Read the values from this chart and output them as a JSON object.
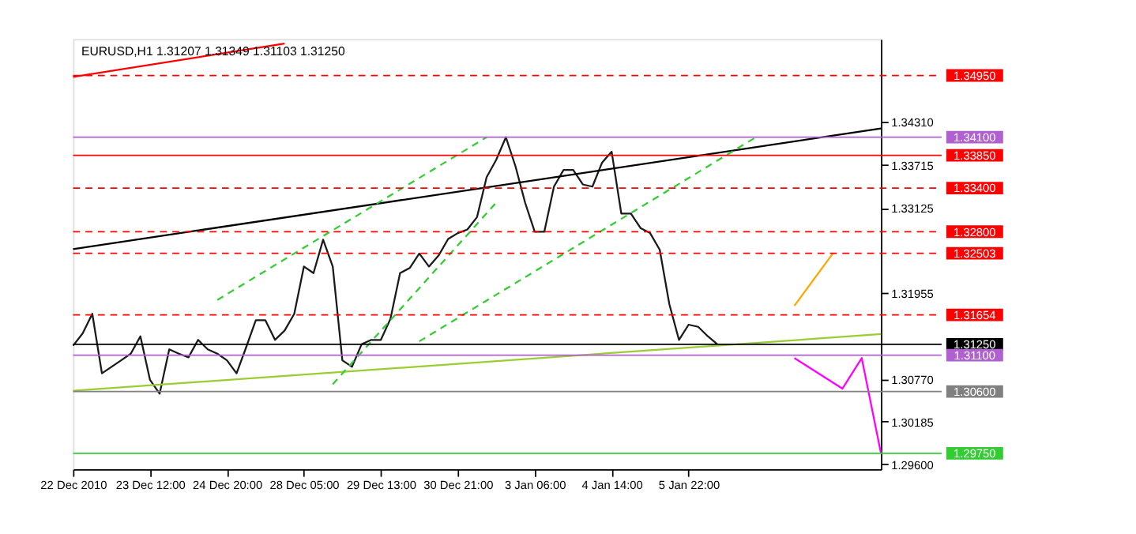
{
  "chart_data": {
    "type": "line",
    "title": "EURUSD,H1  1.31207 1.31349 1.31103 1.31250",
    "categories": [
      "22 Dec 2010",
      null,
      null,
      null,
      null,
      null,
      null,
      null,
      "23 Dec 12:00",
      null,
      null,
      null,
      null,
      null,
      null,
      null,
      "24 Dec 20:00",
      null,
      null,
      null,
      null,
      null,
      null,
      null,
      "28 Dec 05:00",
      null,
      null,
      null,
      null,
      null,
      null,
      null,
      "29 Dec 13:00",
      null,
      null,
      null,
      null,
      null,
      null,
      null,
      "30 Dec 21:00",
      null,
      null,
      null,
      null,
      null,
      null,
      null,
      "3 Jan 06:00",
      null,
      null,
      null,
      null,
      null,
      null,
      null,
      "4 Jan 14:00",
      null,
      null,
      null,
      null,
      null,
      null,
      null,
      "5 Jan 22:00",
      null,
      null,
      null,
      null,
      null,
      null,
      null,
      null,
      null,
      null,
      null,
      null,
      null,
      null,
      null,
      null,
      null,
      null,
      null,
      null
    ],
    "ylim": [
      1.2953,
      1.3545
    ],
    "yticks": [
      {
        "value": 1.3431,
        "label": "1.34310"
      },
      {
        "value": 1.33715,
        "label": "1.33715"
      },
      {
        "value": 1.33125,
        "label": "1.33125"
      },
      {
        "value": 1.31955,
        "label": "1.31955"
      },
      {
        "value": 1.3077,
        "label": "1.30770"
      },
      {
        "value": 1.30185,
        "label": "1.30185"
      },
      {
        "value": 1.296,
        "label": "1.29600"
      }
    ],
    "grid": false,
    "marker": "none",
    "series": [
      {
        "color": "#1a1a1a",
        "line_style": "solid",
        "values": [
          1.3123,
          1.314,
          1.3167,
          1.3085,
          1.3094,
          1.3103,
          1.3112,
          1.3136,
          1.3076,
          1.3057,
          1.3118,
          1.3112,
          1.3107,
          1.3131,
          1.3118,
          1.3112,
          1.3103,
          1.3085,
          1.3121,
          1.3158,
          1.3158,
          1.3131,
          1.3144,
          1.3167,
          1.3232,
          1.3223,
          1.3269,
          1.3232,
          1.3103,
          1.3094,
          1.3125,
          1.3131,
          1.3131,
          1.316,
          1.3223,
          1.323,
          1.325,
          1.3232,
          1.3247,
          1.327,
          1.3278,
          1.3283,
          1.33,
          1.3355,
          1.3379,
          1.341,
          1.337,
          1.332,
          1.328,
          1.328,
          1.3342,
          1.3365,
          1.3365,
          1.3345,
          1.3342,
          1.3375,
          1.339,
          1.3305,
          1.3305,
          1.3285,
          1.3278,
          1.3255,
          1.318,
          1.3131,
          1.3152,
          1.3149,
          1.3136,
          1.3125,
          null,
          null,
          null,
          null,
          null,
          null,
          null,
          null,
          null,
          null,
          null,
          null,
          null,
          null,
          null,
          null,
          null
        ]
      },
      {
        "color": "#ff0000",
        "line_style": "solid",
        "values": [
          1.3493,
          null,
          null,
          null,
          null,
          null,
          null,
          null,
          null,
          null,
          null,
          null,
          null,
          null,
          null,
          null,
          null,
          null,
          null,
          null,
          null,
          null,
          1.3539,
          null,
          null,
          null,
          null,
          null,
          null,
          null,
          null,
          null,
          null,
          null,
          null,
          null,
          null,
          null,
          null,
          null,
          null,
          null,
          null,
          null,
          null,
          null,
          null,
          null,
          null,
          null,
          null,
          null,
          null,
          null,
          null,
          null,
          null,
          null,
          null,
          null,
          null,
          null,
          null,
          null,
          null,
          null,
          null,
          null,
          null,
          null,
          null,
          null,
          null,
          null,
          null,
          null,
          null,
          null,
          null,
          null,
          null,
          null,
          null,
          null,
          null
        ]
      },
      {
        "color": "#000000",
        "line_style": "solid",
        "values": [
          1.3256,
          null,
          null,
          null,
          null,
          null,
          null,
          null,
          null,
          null,
          null,
          null,
          null,
          null,
          null,
          null,
          null,
          null,
          null,
          null,
          null,
          null,
          null,
          null,
          null,
          null,
          null,
          null,
          null,
          null,
          null,
          null,
          null,
          null,
          null,
          null,
          null,
          null,
          null,
          null,
          null,
          null,
          null,
          null,
          null,
          null,
          null,
          null,
          null,
          null,
          null,
          null,
          null,
          null,
          null,
          null,
          null,
          null,
          null,
          null,
          null,
          null,
          null,
          null,
          null,
          null,
          null,
          null,
          null,
          null,
          null,
          null,
          null,
          null,
          null,
          null,
          null,
          null,
          null,
          null,
          null,
          null,
          null,
          null,
          1.3422
        ]
      },
      {
        "color": "#9acd32",
        "line_style": "solid",
        "values": [
          1.3061,
          null,
          null,
          null,
          null,
          null,
          null,
          null,
          null,
          null,
          null,
          null,
          null,
          null,
          null,
          null,
          null,
          null,
          null,
          null,
          null,
          null,
          null,
          null,
          null,
          null,
          null,
          null,
          null,
          null,
          null,
          null,
          null,
          null,
          null,
          null,
          null,
          null,
          null,
          null,
          null,
          null,
          null,
          null,
          null,
          null,
          null,
          null,
          null,
          null,
          null,
          null,
          null,
          null,
          null,
          null,
          null,
          null,
          null,
          null,
          null,
          null,
          null,
          null,
          null,
          null,
          null,
          null,
          null,
          null,
          null,
          null,
          null,
          null,
          null,
          null,
          null,
          null,
          null,
          null,
          null,
          null,
          null,
          null,
          1.3139
        ]
      },
      {
        "color": "#32cd32",
        "line_style": "dashed",
        "values": [
          null,
          null,
          null,
          null,
          null,
          null,
          null,
          null,
          null,
          null,
          null,
          null,
          null,
          null,
          null,
          1.3186,
          null,
          null,
          null,
          null,
          null,
          null,
          null,
          null,
          null,
          null,
          null,
          null,
          null,
          null,
          null,
          null,
          null,
          null,
          null,
          null,
          null,
          null,
          null,
          null,
          null,
          null,
          null,
          1.341,
          null,
          null,
          null,
          null,
          null,
          null,
          null,
          null,
          null,
          null,
          null,
          null,
          null,
          null,
          null,
          null,
          null,
          null,
          null,
          null,
          null,
          null,
          null,
          null,
          null,
          null,
          null,
          null,
          null,
          null,
          null,
          null,
          null,
          null,
          null,
          null,
          null,
          null,
          null,
          null,
          null
        ]
      },
      {
        "color": "#32cd32",
        "line_style": "dashed",
        "values": [
          null,
          null,
          null,
          null,
          null,
          null,
          null,
          null,
          null,
          null,
          null,
          null,
          null,
          null,
          null,
          null,
          null,
          null,
          null,
          null,
          null,
          null,
          null,
          null,
          null,
          null,
          null,
          1.307,
          null,
          null,
          null,
          null,
          null,
          null,
          null,
          null,
          null,
          null,
          null,
          null,
          null,
          null,
          null,
          null,
          1.332,
          null,
          null,
          null,
          null,
          null,
          null,
          null,
          null,
          null,
          null,
          null,
          null,
          null,
          null,
          null,
          null,
          null,
          null,
          null,
          null,
          null,
          null,
          null,
          null,
          null,
          null,
          null,
          null,
          null,
          null,
          null,
          null,
          null,
          null,
          null,
          null,
          null,
          null,
          null,
          null
        ]
      },
      {
        "color": "#32cd32",
        "line_style": "dashed",
        "values": [
          null,
          null,
          null,
          null,
          null,
          null,
          null,
          null,
          null,
          null,
          null,
          null,
          null,
          null,
          null,
          null,
          null,
          null,
          null,
          null,
          null,
          null,
          null,
          null,
          null,
          null,
          null,
          null,
          null,
          null,
          null,
          null,
          null,
          null,
          null,
          null,
          1.3129,
          null,
          null,
          null,
          null,
          null,
          null,
          null,
          null,
          null,
          null,
          null,
          null,
          null,
          null,
          null,
          null,
          null,
          null,
          null,
          null,
          null,
          null,
          null,
          null,
          null,
          null,
          null,
          null,
          null,
          null,
          null,
          null,
          null,
          null,
          1.341,
          null,
          null,
          null,
          null,
          null,
          null,
          null,
          null,
          null,
          null,
          null,
          null,
          null
        ]
      },
      {
        "color": "#ffa500",
        "line_style": "solid",
        "values": [
          null,
          null,
          null,
          null,
          null,
          null,
          null,
          null,
          null,
          null,
          null,
          null,
          null,
          null,
          null,
          null,
          null,
          null,
          null,
          null,
          null,
          null,
          null,
          null,
          null,
          null,
          null,
          null,
          null,
          null,
          null,
          null,
          null,
          null,
          null,
          null,
          null,
          null,
          null,
          null,
          null,
          null,
          null,
          null,
          null,
          null,
          null,
          null,
          null,
          null,
          null,
          null,
          null,
          null,
          null,
          null,
          null,
          null,
          null,
          null,
          null,
          null,
          null,
          null,
          null,
          null,
          null,
          null,
          null,
          null,
          null,
          null,
          null,
          null,
          null,
          1.3178,
          null,
          null,
          null,
          1.325,
          null,
          null,
          null,
          null,
          null
        ]
      },
      {
        "color": "#ff00ff",
        "line_style": "solid",
        "values": [
          null,
          null,
          null,
          null,
          null,
          null,
          null,
          null,
          null,
          null,
          null,
          null,
          null,
          null,
          null,
          null,
          null,
          null,
          null,
          null,
          null,
          null,
          null,
          null,
          null,
          null,
          null,
          null,
          null,
          null,
          null,
          null,
          null,
          null,
          null,
          null,
          null,
          null,
          null,
          null,
          null,
          null,
          null,
          null,
          null,
          null,
          null,
          null,
          null,
          null,
          null,
          null,
          null,
          null,
          null,
          null,
          null,
          null,
          null,
          null,
          null,
          null,
          null,
          null,
          null,
          null,
          null,
          null,
          null,
          null,
          null,
          null,
          null,
          null,
          null,
          1.3106,
          null,
          null,
          null,
          null,
          1.3064,
          null,
          1.3106,
          null,
          1.2975
        ]
      }
    ],
    "ref_lines": [
      {
        "axis": "y",
        "value": 1.3495,
        "label": "1.34950",
        "color": "#ff0000",
        "line_style": "dashed"
      },
      {
        "axis": "y",
        "value": 1.341,
        "label": "1.34100",
        "color": "#b060d0",
        "line_style": "solid"
      },
      {
        "axis": "y",
        "value": 1.3385,
        "label": "1.33850",
        "color": "#ff0000",
        "line_style": "solid"
      },
      {
        "axis": "y",
        "value": 1.334,
        "label": "1.33400",
        "color": "#ff0000",
        "line_style": "dashed"
      },
      {
        "axis": "y",
        "value": 1.328,
        "label": "1.32800",
        "color": "#ff0000",
        "line_style": "dashed"
      },
      {
        "axis": "y",
        "value": 1.32503,
        "label": "1.32503",
        "color": "#ff0000",
        "line_style": "dashed"
      },
      {
        "axis": "y",
        "value": 1.31654,
        "label": "1.31654",
        "color": "#ff0000",
        "line_style": "dashed"
      },
      {
        "axis": "y",
        "value": 1.3125,
        "label": "1.31250",
        "color": "#000000",
        "line_style": "solid"
      },
      {
        "axis": "y",
        "value": 1.311,
        "label": "1.31100",
        "color": "#b060d0",
        "line_style": "solid"
      },
      {
        "axis": "y",
        "value": 1.306,
        "label": "1.30600",
        "color": "#808080",
        "line_style": "solid"
      },
      {
        "axis": "y",
        "value": 1.2975,
        "label": "1.29750",
        "color": "#32cd32",
        "line_style": "solid"
      }
    ]
  }
}
